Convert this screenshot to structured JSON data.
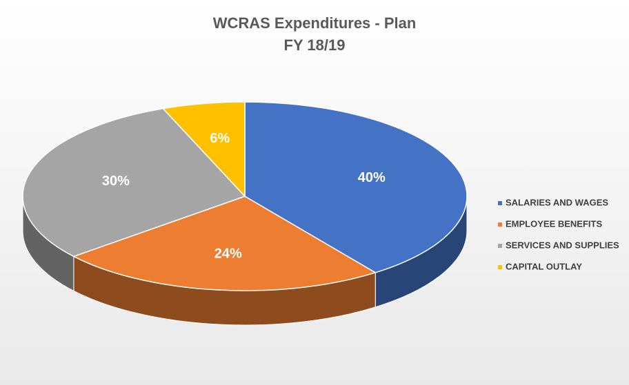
{
  "chart_data": {
    "type": "pie",
    "title": "WCRAS Expenditures - Plan",
    "subtitle": "FY 18/19",
    "categories": [
      "SALARIES AND WAGES",
      "EMPLOYEE BENEFITS",
      "SERVICES AND SUPPLIES",
      "CAPITAL OUTLAY"
    ],
    "values": [
      40,
      24,
      30,
      6
    ],
    "value_labels": [
      "40%",
      "24%",
      "30%",
      "6%"
    ],
    "colors": [
      "#4472c4",
      "#ed7d31",
      "#a5a5a5",
      "#ffc000"
    ],
    "legend": "right"
  }
}
